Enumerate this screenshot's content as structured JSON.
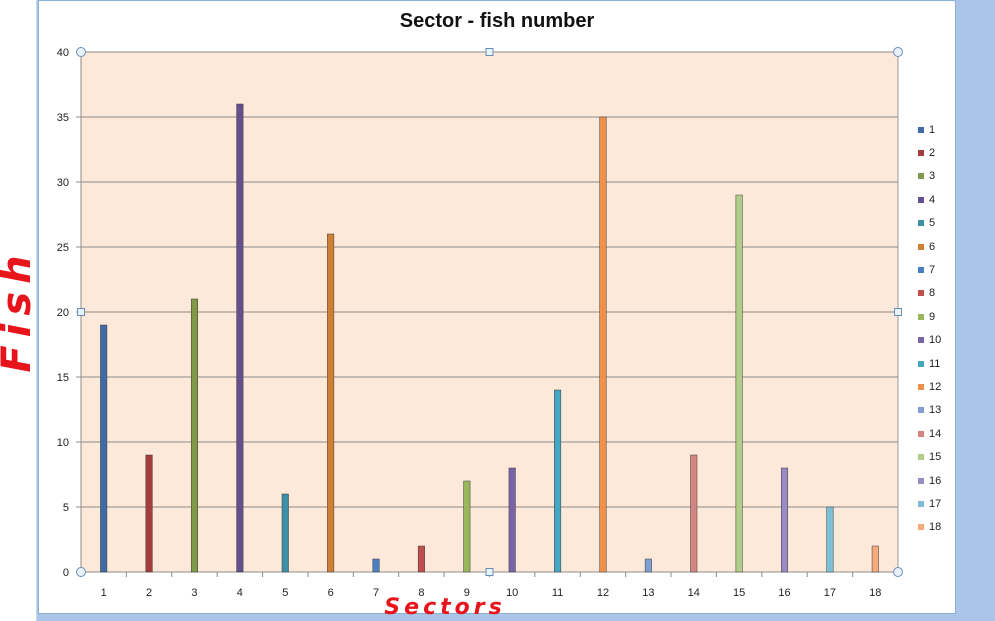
{
  "chart_data": {
    "type": "bar",
    "title": "Sector - fish number",
    "xlabel": "Sectors",
    "ylabel": "Fish",
    "ylim": [
      0,
      40
    ],
    "yticks": [
      0,
      5,
      10,
      15,
      20,
      25,
      30,
      35,
      40
    ],
    "grid": true,
    "legend_position": "right",
    "categories": [
      "1",
      "2",
      "3",
      "4",
      "5",
      "6",
      "7",
      "8",
      "9",
      "10",
      "11",
      "12",
      "13",
      "14",
      "15",
      "16",
      "17",
      "18"
    ],
    "values": [
      19,
      9,
      21,
      36,
      6,
      26,
      1,
      2,
      7,
      8,
      14,
      35,
      1,
      9,
      29,
      8,
      5,
      2
    ],
    "series": [
      {
        "name": "1",
        "color": "#3f6aa5"
      },
      {
        "name": "2",
        "color": "#a43d3b"
      },
      {
        "name": "3",
        "color": "#7f9a48"
      },
      {
        "name": "4",
        "color": "#64508f"
      },
      {
        "name": "5",
        "color": "#3c8fa6"
      },
      {
        "name": "6",
        "color": "#d17f34"
      },
      {
        "name": "7",
        "color": "#4a7fc0"
      },
      {
        "name": "8",
        "color": "#c04e4c"
      },
      {
        "name": "9",
        "color": "#99b75a"
      },
      {
        "name": "10",
        "color": "#7a64a8"
      },
      {
        "name": "11",
        "color": "#46a7c2"
      },
      {
        "name": "12",
        "color": "#f0904a"
      },
      {
        "name": "13",
        "color": "#809fd3"
      },
      {
        "name": "14",
        "color": "#d38584"
      },
      {
        "name": "15",
        "color": "#b2cd87"
      },
      {
        "name": "16",
        "color": "#9a8bc3"
      },
      {
        "name": "17",
        "color": "#7cc0d7"
      },
      {
        "name": "18",
        "color": "#f5ac7c"
      }
    ],
    "plot_background": "#fde9d9"
  }
}
